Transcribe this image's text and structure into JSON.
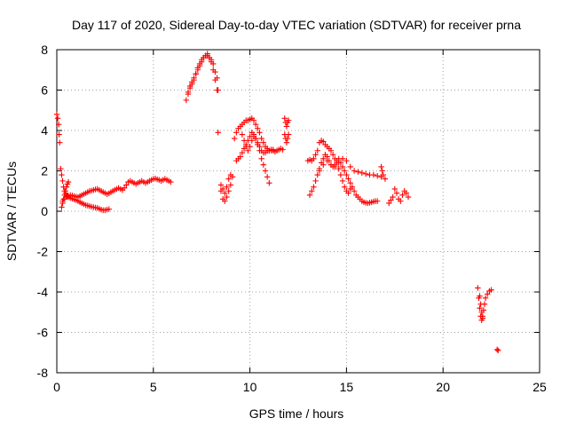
{
  "chart_data": {
    "type": "scatter",
    "title": "Day 117 of 2020, Sidereal Day-to-day VTEC variation (SDTVAR) for receiver prna",
    "xlabel": "GPS time / hours",
    "ylabel": "SDTVAR / TECUs",
    "xlim": [
      0,
      25
    ],
    "ylim": [
      -8,
      8
    ],
    "xticks": [
      0,
      5,
      10,
      15,
      20,
      25
    ],
    "yticks": [
      -8,
      -6,
      -4,
      -2,
      0,
      2,
      4,
      6,
      8
    ],
    "grid": true,
    "marker": "plus",
    "color": "#ff0000",
    "series": [
      {
        "name": "SDTVAR",
        "segments": [
          {
            "x": [
              0.0,
              0.05,
              0.1,
              0.12,
              0.15
            ],
            "y": [
              4.8,
              4.6,
              4.3,
              3.8,
              3.4
            ]
          },
          {
            "x": [
              0.2,
              0.25,
              0.3,
              0.35,
              0.4,
              0.45,
              0.5,
              0.55,
              0.6,
              0.7,
              0.8,
              0.9,
              1.0,
              1.1,
              1.2,
              1.3,
              1.4,
              1.5,
              1.6,
              1.7,
              1.8,
              1.9,
              2.0,
              2.1,
              2.2,
              2.3,
              2.4,
              2.5,
              2.6,
              2.7
            ],
            "y": [
              2.1,
              1.8,
              1.5,
              1.2,
              1.0,
              0.9,
              0.8,
              0.75,
              0.7,
              0.65,
              0.62,
              0.58,
              0.55,
              0.5,
              0.45,
              0.4,
              0.35,
              0.3,
              0.28,
              0.25,
              0.22,
              0.2,
              0.18,
              0.16,
              0.12,
              0.08,
              0.05,
              0.05,
              0.08,
              0.1
            ]
          },
          {
            "x": [
              0.25,
              0.3,
              0.35,
              0.4,
              0.45,
              0.5,
              0.55,
              0.6
            ],
            "y": [
              0.2,
              0.4,
              0.6,
              0.8,
              1.0,
              1.2,
              1.35,
              1.45
            ]
          },
          {
            "x": [
              0.3,
              0.4,
              0.5,
              0.6,
              0.7,
              0.8,
              0.9,
              1.0,
              1.1,
              1.2,
              1.3,
              1.4,
              1.5,
              1.6,
              1.7,
              1.8,
              1.9,
              2.0,
              2.1,
              2.2,
              2.3,
              2.4,
              2.5,
              2.6,
              2.7,
              2.8,
              2.9,
              3.0,
              3.1,
              3.2,
              3.3,
              3.4,
              3.5,
              3.6,
              3.7,
              3.8,
              3.9,
              4.0,
              4.1,
              4.2,
              4.3,
              4.4,
              4.5,
              4.6,
              4.7,
              4.8,
              4.9,
              5.0,
              5.1,
              5.2,
              5.3,
              5.4,
              5.5,
              5.6,
              5.7,
              5.8,
              5.9
            ],
            "y": [
              0.5,
              0.6,
              0.7,
              0.75,
              0.8,
              0.78,
              0.75,
              0.72,
              0.7,
              0.75,
              0.8,
              0.85,
              0.9,
              0.95,
              1.0,
              1.02,
              1.05,
              1.08,
              1.1,
              1.05,
              1.0,
              0.95,
              0.9,
              0.85,
              0.88,
              0.95,
              1.0,
              1.05,
              1.1,
              1.15,
              1.1,
              1.05,
              1.15,
              1.3,
              1.45,
              1.5,
              1.45,
              1.4,
              1.35,
              1.4,
              1.45,
              1.5,
              1.45,
              1.4,
              1.45,
              1.5,
              1.55,
              1.6,
              1.62,
              1.58,
              1.55,
              1.5,
              1.55,
              1.6,
              1.55,
              1.5,
              1.45
            ]
          },
          {
            "x": [
              6.7,
              6.8,
              6.9,
              7.0,
              7.1,
              7.2,
              7.3,
              7.4,
              7.5,
              7.6,
              7.7,
              7.8,
              7.9,
              8.0,
              8.1,
              8.2,
              8.3
            ],
            "y": [
              5.5,
              5.9,
              6.2,
              6.4,
              6.6,
              6.8,
              7.0,
              7.2,
              7.4,
              7.6,
              7.7,
              7.8,
              7.6,
              7.5,
              7.3,
              6.9,
              6.6
            ]
          },
          {
            "x": [
              6.8,
              6.9,
              7.0,
              7.1,
              7.2,
              7.3,
              7.4,
              7.5,
              7.6,
              7.7,
              7.8,
              7.9,
              8.0,
              8.1,
              8.2,
              8.3,
              8.35
            ],
            "y": [
              5.8,
              6.1,
              6.3,
              6.5,
              6.8,
              7.1,
              7.3,
              7.5,
              7.6,
              7.7,
              7.7,
              7.6,
              7.4,
              7.0,
              6.5,
              6.0,
              6.0
            ]
          },
          {
            "x": [
              8.35
            ],
            "y": [
              3.9
            ]
          },
          {
            "x": [
              8.5,
              8.6,
              8.7,
              8.8,
              8.9,
              9.0
            ],
            "y": [
              1.0,
              0.6,
              0.5,
              0.7,
              1.0,
              1.3
            ]
          },
          {
            "x": [
              8.5,
              8.6,
              8.7,
              8.8,
              8.9,
              9.0,
              9.1
            ],
            "y": [
              1.3,
              1.1,
              0.9,
              1.2,
              1.6,
              1.8,
              1.7
            ]
          },
          {
            "x": [
              9.2,
              9.3,
              9.4,
              9.5,
              9.6,
              9.7,
              9.8,
              9.9,
              10.0,
              10.1,
              10.2,
              10.3,
              10.4,
              10.5,
              10.6,
              10.7,
              10.8,
              10.9,
              11.0,
              11.1,
              11.2
            ],
            "y": [
              3.6,
              3.9,
              4.1,
              4.2,
              4.3,
              4.4,
              4.5,
              4.5,
              4.55,
              4.6,
              4.5,
              4.3,
              4.1,
              3.9,
              3.6,
              3.4,
              3.2,
              3.1,
              3.0,
              3.0,
              3.05
            ]
          },
          {
            "x": [
              9.3,
              9.4,
              9.5,
              9.6,
              9.7,
              9.8,
              9.9,
              10.0,
              10.1,
              10.2,
              10.3,
              10.4,
              10.5,
              10.6,
              10.7,
              10.8,
              10.9,
              11.0
            ],
            "y": [
              2.5,
              2.6,
              2.7,
              2.9,
              3.1,
              3.3,
              3.5,
              3.7,
              3.9,
              3.8,
              3.6,
              3.3,
              3.0,
              2.6,
              2.3,
              2.0,
              1.7,
              1.4
            ]
          },
          {
            "x": [
              9.6,
              9.7,
              9.8,
              9.9,
              10.0,
              10.1,
              10.2,
              10.3,
              10.4,
              10.5,
              10.6,
              10.7,
              10.8,
              10.9,
              11.0,
              11.1,
              11.2,
              11.3,
              11.4,
              11.5,
              11.6,
              11.7
            ],
            "y": [
              3.8,
              3.5,
              3.2,
              3.0,
              3.2,
              3.5,
              3.7,
              3.6,
              3.4,
              3.2,
              3.0,
              2.9,
              2.9,
              3.0,
              3.0,
              3.05,
              3.0,
              2.95,
              3.0,
              3.05,
              3.1,
              3.05
            ]
          },
          {
            "x": [
              11.8,
              11.85,
              11.9,
              11.95,
              12.0,
              11.8,
              11.85,
              11.9,
              11.95,
              12.0
            ],
            "y": [
              4.6,
              4.4,
              4.2,
              4.4,
              4.5,
              3.8,
              3.6,
              3.4,
              3.6,
              3.8
            ]
          },
          {
            "x": [
              13.0,
              13.1,
              13.2,
              13.3,
              13.4,
              13.5,
              13.6,
              13.7,
              13.8,
              13.9,
              14.0,
              14.1,
              14.2,
              14.3,
              14.4,
              14.5,
              14.6,
              14.7,
              14.8,
              14.9,
              15.0,
              15.1,
              15.2
            ],
            "y": [
              2.5,
              2.55,
              2.5,
              2.6,
              2.8,
              3.0,
              3.4,
              3.5,
              3.45,
              3.3,
              3.2,
              3.1,
              3.0,
              2.8,
              2.6,
              2.4,
              2.1,
              1.8,
              1.5,
              1.2,
              1.0,
              0.9,
              1.1
            ]
          },
          {
            "x": [
              13.1,
              13.2,
              13.3,
              13.4,
              13.5,
              13.6,
              13.7,
              13.8,
              13.9,
              14.0,
              14.1,
              14.2,
              14.3,
              14.4,
              14.5,
              14.6,
              14.7,
              14.8,
              14.9,
              15.0,
              15.1,
              15.2,
              15.3,
              15.4,
              15.5,
              15.6,
              15.7,
              15.8,
              15.9,
              16.0,
              16.1,
              16.2,
              16.3,
              16.4,
              16.5,
              16.6
            ],
            "y": [
              0.8,
              1.0,
              1.2,
              1.5,
              1.8,
              2.1,
              2.4,
              2.6,
              2.8,
              2.7,
              2.5,
              2.3,
              2.2,
              2.3,
              2.5,
              2.6,
              2.4,
              2.2,
              2.0,
              1.8,
              1.6,
              1.4,
              1.2,
              1.0,
              0.8,
              0.7,
              0.6,
              0.5,
              0.45,
              0.42,
              0.4,
              0.42,
              0.45,
              0.48,
              0.5,
              0.5
            ]
          },
          {
            "x": [
              13.6,
              13.8,
              14.0,
              14.2,
              14.4,
              14.6,
              14.8,
              15.0,
              15.2,
              15.4,
              15.6,
              15.8,
              16.0,
              16.2,
              16.4,
              16.6,
              16.8,
              17.0
            ],
            "y": [
              2.0,
              2.3,
              2.5,
              2.3,
              2.2,
              2.4,
              2.6,
              2.5,
              2.2,
              2.0,
              1.95,
              1.9,
              1.85,
              1.8,
              1.8,
              1.75,
              1.7,
              1.6
            ]
          },
          {
            "x": [
              16.8,
              16.85,
              16.9
            ],
            "y": [
              2.2,
              2.0,
              1.8
            ]
          },
          {
            "x": [
              17.2,
              17.3,
              17.4,
              17.5,
              17.6,
              17.7,
              17.8,
              17.9,
              18.0,
              18.1,
              18.2
            ],
            "y": [
              0.4,
              0.55,
              0.7,
              1.1,
              0.9,
              0.6,
              0.5,
              0.8,
              1.0,
              0.9,
              0.7
            ]
          },
          {
            "x": [
              21.8,
              21.85,
              21.9,
              21.95,
              22.0,
              22.05,
              22.1,
              22.15,
              22.2,
              22.3,
              22.4,
              22.5
            ],
            "y": [
              -3.8,
              -4.3,
              -4.8,
              -5.2,
              -5.4,
              -5.2,
              -4.9,
              -4.6,
              -4.3,
              -4.1,
              -3.95,
              -3.9
            ]
          },
          {
            "x": [
              21.9,
              21.95,
              22.0,
              22.05
            ],
            "y": [
              -4.2,
              -4.6,
              -5.0,
              -5.3
            ]
          },
          {
            "x": [
              22.8,
              22.85
            ],
            "y": [
              -6.85,
              -6.9
            ]
          }
        ]
      }
    ]
  }
}
